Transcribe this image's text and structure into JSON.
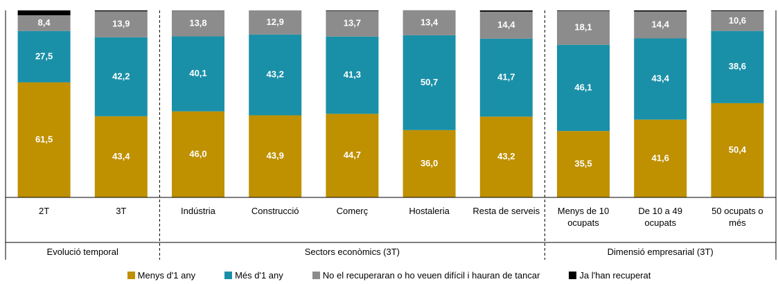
{
  "chart_data": {
    "type": "stacked_bar",
    "categories": [
      "2T",
      "3T",
      "Indústria",
      "Construcció",
      "Comerç",
      "Hostaleria",
      "Resta de serveis",
      "Menys de 10 ocupats",
      "De 10 a 49 ocupats",
      "50 ocupats o més"
    ],
    "groups": [
      {
        "name": "Evolució temporal",
        "size": 2
      },
      {
        "name": "Sectors econòmics (3T)",
        "size": 5
      },
      {
        "name": "Dimensió empresarial (3T)",
        "size": 3
      }
    ],
    "ylim": [
      0,
      100
    ],
    "series": [
      {
        "name": "Menys d'1 any",
        "color": "#bf9000",
        "values": [
          61.5,
          43.4,
          46.0,
          43.9,
          44.7,
          36.0,
          43.2,
          35.5,
          41.6,
          50.4
        ],
        "value_labels": [
          "61,5",
          "43,4",
          "46,0",
          "43,9",
          "44,7",
          "36,0",
          "43,2",
          "35,5",
          "41,6",
          "50,4"
        ]
      },
      {
        "name": "Més d'1 any",
        "color": "#1a90a8",
        "values": [
          27.5,
          42.2,
          40.1,
          43.2,
          41.3,
          50.7,
          41.7,
          46.1,
          43.4,
          38.6
        ],
        "value_labels": [
          "27,5",
          "42,2",
          "40,1",
          "43,2",
          "41,3",
          "50,7",
          "41,7",
          "46,1",
          "43,4",
          "38,6"
        ]
      },
      {
        "name": "No el recuperaran o ho veuen difícil i hauran de tancar",
        "color": "#8c8c8c",
        "values": [
          8.4,
          13.9,
          13.8,
          12.9,
          13.7,
          13.4,
          14.4,
          18.1,
          14.4,
          10.6
        ],
        "value_labels": [
          "8,4",
          "13,9",
          "13,8",
          "12,9",
          "13,7",
          "13,4",
          "14,4",
          "18,1",
          "14,4",
          "10,6"
        ]
      },
      {
        "name": "Ja l'han recuperat",
        "color": "#000000",
        "values": [
          2.6,
          0.5,
          0.1,
          0.0,
          0.3,
          0.0,
          0.7,
          0.3,
          0.6,
          0.4
        ]
      }
    ]
  }
}
